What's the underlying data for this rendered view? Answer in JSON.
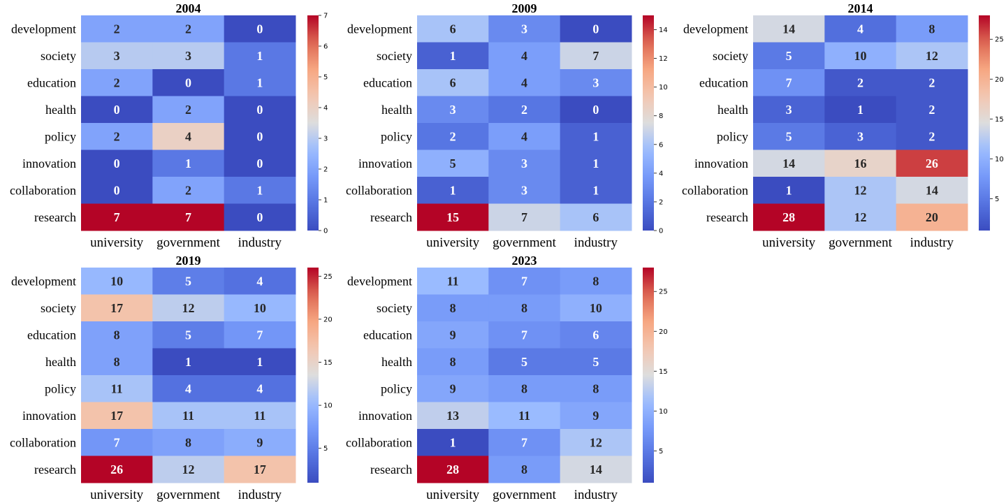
{
  "chart_data": [
    {
      "type": "heatmap",
      "title": "2004",
      "rows": [
        "development",
        "society",
        "education",
        "health",
        "policy",
        "innovation",
        "collaboration",
        "research"
      ],
      "columns": [
        "university",
        "government",
        "industry"
      ],
      "values": [
        [
          2,
          2,
          0
        ],
        [
          3,
          3,
          1
        ],
        [
          2,
          0,
          1
        ],
        [
          0,
          2,
          0
        ],
        [
          2,
          4,
          0
        ],
        [
          0,
          1,
          0
        ],
        [
          0,
          2,
          1
        ],
        [
          7,
          7,
          0
        ]
      ],
      "colorbar": {
        "min": 0,
        "max": 7,
        "ticks": [
          0,
          1,
          2,
          3,
          4,
          5,
          6,
          7
        ]
      }
    },
    {
      "type": "heatmap",
      "title": "2009",
      "rows": [
        "development",
        "society",
        "education",
        "health",
        "policy",
        "innovation",
        "collaboration",
        "research"
      ],
      "columns": [
        "university",
        "government",
        "industry"
      ],
      "values": [
        [
          6,
          3,
          0
        ],
        [
          1,
          4,
          7
        ],
        [
          6,
          4,
          3
        ],
        [
          3,
          2,
          0
        ],
        [
          2,
          4,
          1
        ],
        [
          5,
          3,
          1
        ],
        [
          1,
          3,
          1
        ],
        [
          15,
          7,
          6
        ]
      ],
      "colorbar": {
        "min": 0,
        "max": 15,
        "ticks": [
          0,
          2,
          4,
          6,
          8,
          10,
          12,
          14
        ]
      }
    },
    {
      "type": "heatmap",
      "title": "2014",
      "rows": [
        "development",
        "society",
        "education",
        "health",
        "policy",
        "innovation",
        "collaboration",
        "research"
      ],
      "columns": [
        "university",
        "government",
        "industry"
      ],
      "values": [
        [
          14,
          4,
          8
        ],
        [
          5,
          10,
          12
        ],
        [
          7,
          2,
          2
        ],
        [
          3,
          1,
          2
        ],
        [
          5,
          3,
          2
        ],
        [
          14,
          16,
          26
        ],
        [
          1,
          12,
          14
        ],
        [
          28,
          12,
          20
        ]
      ],
      "colorbar": {
        "min": 1,
        "max": 28,
        "ticks": [
          5,
          10,
          15,
          20,
          25
        ]
      }
    },
    {
      "type": "heatmap",
      "title": "2019",
      "rows": [
        "development",
        "society",
        "education",
        "health",
        "policy",
        "innovation",
        "collaboration",
        "research"
      ],
      "columns": [
        "university",
        "government",
        "industry"
      ],
      "values": [
        [
          10,
          5,
          4
        ],
        [
          17,
          12,
          10
        ],
        [
          8,
          5,
          7
        ],
        [
          8,
          1,
          1
        ],
        [
          11,
          4,
          4
        ],
        [
          17,
          11,
          11
        ],
        [
          7,
          8,
          9
        ],
        [
          26,
          12,
          17
        ]
      ],
      "colorbar": {
        "min": 1,
        "max": 26,
        "ticks": [
          5,
          10,
          15,
          20,
          25
        ]
      }
    },
    {
      "type": "heatmap",
      "title": "2023",
      "rows": [
        "development",
        "society",
        "education",
        "health",
        "policy",
        "innovation",
        "collaboration",
        "research"
      ],
      "columns": [
        "university",
        "government",
        "industry"
      ],
      "values": [
        [
          11,
          7,
          8
        ],
        [
          8,
          8,
          10
        ],
        [
          9,
          7,
          6
        ],
        [
          8,
          5,
          5
        ],
        [
          9,
          8,
          8
        ],
        [
          13,
          11,
          9
        ],
        [
          1,
          7,
          12
        ],
        [
          28,
          8,
          14
        ]
      ],
      "colorbar": {
        "min": 1,
        "max": 28,
        "ticks": [
          5,
          10,
          15,
          20,
          25
        ]
      }
    }
  ],
  "colormap": "coolwarm"
}
